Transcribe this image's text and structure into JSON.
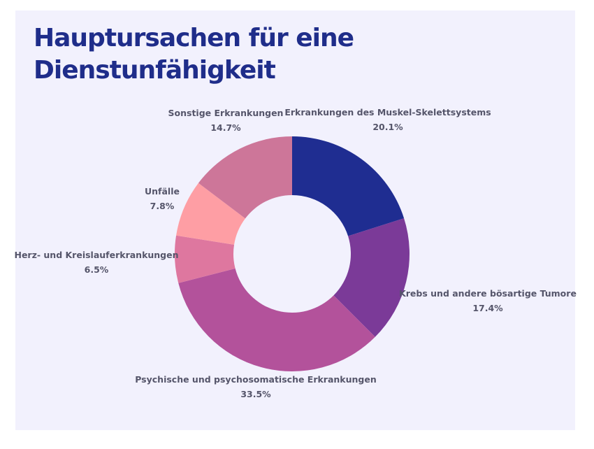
{
  "chart_data": {
    "type": "pie",
    "donut": true,
    "title": "Hauptursachen für eine Dienstunfähigkeit",
    "unit": "%",
    "slices": [
      {
        "label": "Erkrankungen des Muskel-Skelettsystems",
        "value": 20.1,
        "value_label": "20.1%",
        "color": "#1f2d91"
      },
      {
        "label": "Krebs und andere bösartige Tumore",
        "value": 17.4,
        "value_label": "17.4%",
        "color": "#7b3a98"
      },
      {
        "label": "Psychische und psychosomatische Erkrankungen",
        "value": 33.5,
        "value_label": "33.5%",
        "color": "#b3529b"
      },
      {
        "label": "Herz- und Kreislauferkrankungen",
        "value": 6.5,
        "value_label": "6.5%",
        "color": "#de779f"
      },
      {
        "label": "Unfälle",
        "value": 7.8,
        "value_label": "7.8%",
        "color": "#fe9ea4"
      },
      {
        "label": "Sonstige Erkrankungen",
        "value": 14.7,
        "value_label": "14.7%",
        "color": "#cd7699"
      }
    ]
  },
  "colors": {
    "background": "#f2f1fd",
    "title": "#1f2d8a",
    "label": "#55556a"
  }
}
